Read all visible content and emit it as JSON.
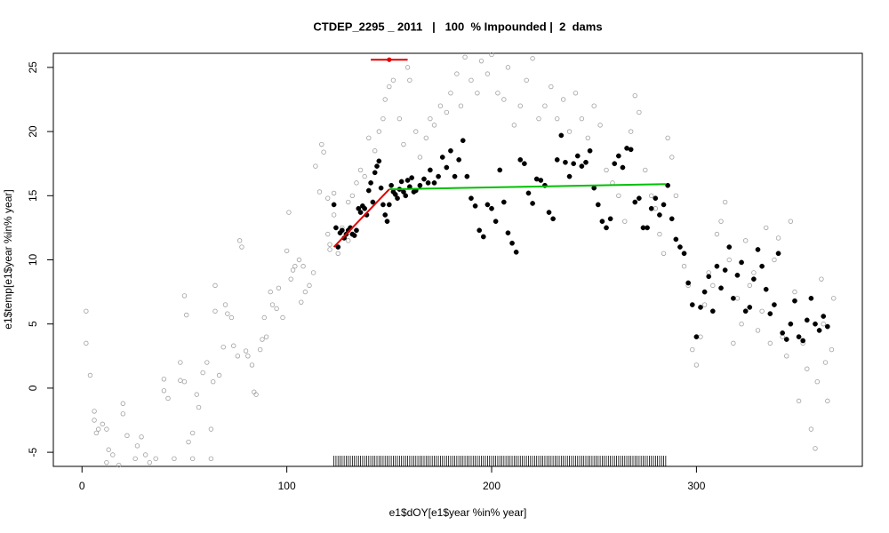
{
  "chart_data": {
    "type": "scatter",
    "title": "CTDEP_2295 _ 2011   |   100  % Impounded |  2  dams",
    "x_label": "e1$dOY[e1$year %in% year]",
    "y_label": "e1$temp[e1$year %in% year]",
    "xlim": [
      -14,
      381
    ],
    "ylim": [
      -6.1,
      26.1
    ],
    "xticks": [
      0,
      100,
      200,
      300
    ],
    "yticks": [
      -5,
      0,
      5,
      10,
      15,
      20,
      25
    ],
    "grid": false,
    "points": [
      {
        "color": "#a0a0a0",
        "filled": false,
        "x": [
          2,
          2,
          4,
          6,
          6,
          7,
          8,
          10,
          12,
          12,
          13,
          15,
          18,
          20,
          20,
          22,
          26,
          27,
          29,
          31,
          33,
          36,
          40,
          40,
          42,
          45,
          48,
          48,
          50,
          50,
          51,
          52,
          54,
          54,
          56,
          57,
          59,
          61,
          63,
          63,
          64,
          65,
          65,
          67,
          69,
          70,
          71,
          73,
          74,
          76,
          77,
          78,
          80,
          81,
          83,
          84,
          85,
          87,
          88,
          89,
          90,
          92,
          93,
          95,
          96,
          98,
          100,
          101,
          102,
          103,
          104,
          106,
          107,
          108,
          109,
          111,
          113,
          114,
          116,
          117,
          118,
          120,
          120,
          121,
          121,
          123,
          123,
          125,
          125,
          127,
          130,
          130,
          132,
          134,
          136,
          138,
          140,
          143,
          145,
          147,
          148,
          150,
          152,
          155,
          157,
          159,
          160,
          163,
          165,
          168,
          170,
          172,
          175,
          178,
          180,
          183,
          185,
          187,
          190,
          193,
          195,
          198,
          200,
          203,
          206,
          208,
          211,
          214,
          217,
          220,
          223,
          226,
          229,
          232,
          235,
          238,
          241,
          244,
          247,
          250,
          253,
          256,
          259,
          262,
          265,
          268,
          270,
          272,
          275,
          278,
          280,
          282,
          284,
          286,
          288,
          290,
          292,
          294,
          296,
          298,
          300,
          302,
          304,
          306,
          308,
          310,
          312,
          314,
          316,
          318,
          320,
          322,
          324,
          326,
          328,
          330,
          332,
          334,
          336,
          338,
          340,
          342,
          344,
          346,
          348,
          350,
          352,
          354,
          356,
          358,
          359,
          361,
          362,
          363,
          364,
          366,
          367
        ],
        "y": [
          6,
          3.5,
          1,
          -2.5,
          -1.8,
          -3.5,
          -3.2,
          -2.8,
          -3.2,
          -5.8,
          -4.8,
          -5.2,
          -6,
          -1.2,
          -2,
          -3.7,
          -5.5,
          -4.5,
          -3.8,
          -5.2,
          -5.8,
          -5.5,
          -0.2,
          0.7,
          -0.8,
          -5.5,
          2,
          0.6,
          7.2,
          0.5,
          5.7,
          -4.2,
          -3.5,
          -5.5,
          -0.5,
          -1.5,
          1.2,
          2,
          -3.2,
          -5.5,
          0.5,
          8,
          6,
          1,
          3.2,
          6.5,
          5.8,
          5.5,
          3.3,
          2.5,
          11.5,
          11,
          2.9,
          2.5,
          1.8,
          -0.3,
          -0.5,
          3,
          3.8,
          5.5,
          4,
          7.5,
          6.5,
          6.2,
          7.8,
          5.5,
          10.7,
          13.7,
          8.5,
          9.2,
          9.5,
          10,
          6.7,
          9.5,
          7.5,
          8,
          9,
          17.3,
          15.3,
          19,
          18.4,
          14.8,
          12,
          11.2,
          10.8,
          15.2,
          13.5,
          11,
          10.5,
          12.5,
          14.5,
          11.5,
          15,
          16,
          17,
          16.5,
          19.5,
          18.5,
          20,
          21,
          22.5,
          23.5,
          24,
          21,
          19,
          25,
          24,
          20,
          18,
          19.5,
          21,
          20.5,
          22,
          21.5,
          23,
          24.5,
          22,
          25.8,
          24,
          23,
          25.5,
          24.5,
          26,
          23,
          22.5,
          25,
          20.5,
          22,
          24,
          25.7,
          21,
          22,
          23.5,
          21,
          22.5,
          20,
          23,
          21,
          19.5,
          22,
          20.5,
          17,
          16,
          15,
          13,
          20,
          22.8,
          21.5,
          17,
          15,
          14,
          12,
          10.5,
          19.5,
          18,
          15,
          11,
          9.5,
          8,
          3,
          1.8,
          4,
          6.5,
          9,
          8,
          12,
          13,
          14.5,
          10,
          3.5,
          7,
          5,
          11.5,
          8,
          9,
          4.5,
          6,
          12.5,
          3.5,
          10,
          11.7,
          4,
          2.5,
          13,
          7.5,
          -1,
          3.5,
          1.5,
          -3.2,
          -4.7,
          0.5,
          8.5,
          5,
          2,
          -1,
          3,
          7
        ]
      },
      {
        "color": "#000000",
        "filled": true,
        "x": [
          123,
          124,
          125,
          126,
          127,
          128,
          129,
          130,
          131,
          132,
          133,
          134,
          135,
          136,
          137,
          138,
          139,
          140,
          141,
          142,
          143,
          144,
          145,
          146,
          147,
          148,
          149,
          150,
          151,
          152,
          153,
          154,
          155,
          156,
          157,
          158,
          159,
          160,
          161,
          162,
          163,
          165,
          167,
          169,
          170,
          172,
          174,
          176,
          178,
          180,
          182,
          184,
          186,
          188,
          190,
          192,
          194,
          196,
          198,
          200,
          202,
          204,
          206,
          208,
          210,
          212,
          214,
          216,
          218,
          220,
          222,
          224,
          226,
          228,
          230,
          232,
          234,
          236,
          238,
          240,
          242,
          244,
          246,
          248,
          250,
          252,
          254,
          256,
          258,
          260,
          262,
          264,
          266,
          268,
          270,
          272,
          274,
          276,
          278,
          280,
          282,
          284,
          286,
          288,
          290,
          292,
          294,
          296,
          298,
          300,
          302,
          304,
          306,
          308,
          310,
          312,
          314,
          316,
          318,
          320,
          322,
          324,
          326,
          328,
          330,
          332,
          334,
          336,
          338,
          340,
          342,
          344,
          346,
          348,
          350,
          352,
          354,
          356,
          358,
          360,
          362,
          364
        ],
        "y": [
          14.3,
          12.5,
          11,
          12.1,
          12.3,
          11.7,
          12,
          12.3,
          12.5,
          12,
          11.9,
          12.3,
          14,
          13.7,
          14.2,
          14,
          13.5,
          15.4,
          16,
          14.5,
          16.8,
          17.3,
          17.7,
          15.6,
          14.3,
          13.5,
          13,
          14.3,
          15.8,
          15.3,
          15.1,
          14.8,
          15.5,
          16.1,
          15.3,
          15,
          16.2,
          15.7,
          16.4,
          15.3,
          15.4,
          15.8,
          16.3,
          16,
          17,
          16,
          16.5,
          18,
          17.2,
          18.5,
          16.5,
          17.8,
          19.3,
          16.5,
          14.8,
          14.2,
          12.3,
          11.8,
          14.3,
          14,
          13,
          17,
          14.5,
          12.1,
          11.3,
          10.6,
          17.8,
          17.5,
          15.2,
          14.4,
          16.3,
          16.2,
          15.8,
          13.7,
          13.2,
          17.8,
          19.7,
          17.6,
          16.5,
          17.5,
          18.1,
          17.3,
          17.6,
          18.5,
          15.6,
          14.3,
          13,
          12.5,
          13.2,
          17.5,
          18.1,
          17.2,
          18.7,
          18.6,
          14.5,
          14.8,
          12.5,
          12.5,
          14,
          14.8,
          13.5,
          14.3,
          15.8,
          13.2,
          11.6,
          11,
          10.5,
          8.2,
          6.5,
          4,
          6.3,
          7.5,
          8.7,
          6,
          9.5,
          7.8,
          9.2,
          11,
          7,
          8.8,
          9.8,
          6,
          6.3,
          8.5,
          10.8,
          9.5,
          7.7,
          5.8,
          6.5,
          10.5,
          4.3,
          3.8,
          5,
          6.8,
          4,
          3.7,
          5.3,
          7,
          5,
          4.5,
          5.6,
          4.8
        ]
      }
    ],
    "lines": [
      {
        "color": "#e00000",
        "x": [
          123,
          150
        ],
        "y": [
          11,
          15.5
        ]
      },
      {
        "color": "#00c000",
        "x": [
          150,
          285
        ],
        "y": [
          15.5,
          15.9
        ]
      }
    ],
    "breakpoint": {
      "color": "#e00000",
      "x": 150,
      "y": 25.6,
      "xmin": 141,
      "xmax": 159
    },
    "rug": [
      123,
      124,
      125,
      126,
      127,
      128,
      129,
      130,
      131,
      132,
      133,
      134,
      135,
      136,
      137,
      138,
      139,
      140,
      141,
      142,
      143,
      144,
      145,
      146,
      147,
      148,
      149,
      150,
      151,
      152,
      153,
      154,
      155,
      156,
      157,
      158,
      159,
      160,
      161,
      162,
      163,
      164,
      165,
      166,
      167,
      168,
      169,
      170,
      171,
      172,
      173,
      174,
      175,
      176,
      177,
      178,
      179,
      180,
      181,
      182,
      183,
      184,
      185,
      186,
      187,
      188,
      189,
      190,
      191,
      192,
      193,
      194,
      195,
      196,
      197,
      198,
      199,
      200,
      201,
      202,
      203,
      204,
      205,
      206,
      207,
      208,
      209,
      210,
      211,
      212,
      213,
      214,
      215,
      216,
      217,
      218,
      219,
      220,
      221,
      222,
      223,
      224,
      225,
      226,
      227,
      228,
      229,
      230,
      231,
      232,
      233,
      234,
      235,
      236,
      237,
      238,
      239,
      240,
      241,
      242,
      243,
      244,
      245,
      246,
      247,
      248,
      249,
      250,
      251,
      252,
      253,
      254,
      255,
      256,
      257,
      258,
      259,
      260,
      261,
      262,
      263,
      264,
      265,
      266,
      267,
      268,
      269,
      270,
      271,
      272,
      273,
      274,
      275,
      276,
      277,
      278,
      279,
      280,
      281,
      282,
      283,
      284,
      285
    ]
  }
}
